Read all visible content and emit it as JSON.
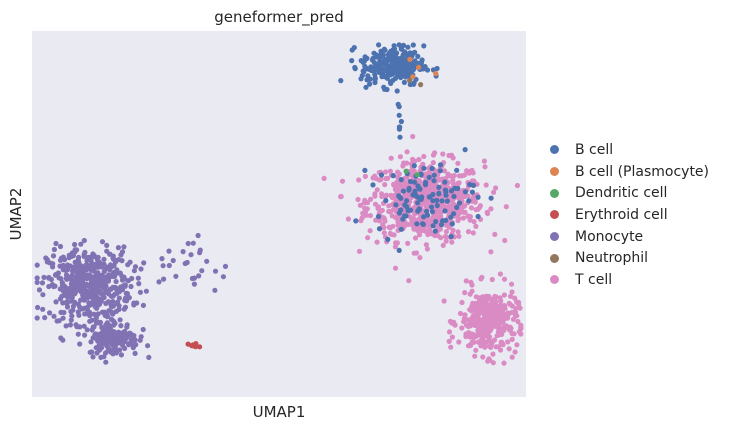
{
  "chart_data": {
    "type": "scatter",
    "title": "geneformer_pred",
    "xlabel": "UMAP1",
    "ylabel": "UMAP2",
    "grid": false,
    "legend_position": "right",
    "series": [
      {
        "name": "B cell",
        "color": "#4c72b0"
      },
      {
        "name": "B cell (Plasmocyte)",
        "color": "#dd8452"
      },
      {
        "name": "Dendritic cell",
        "color": "#55a868"
      },
      {
        "name": "Erythroid cell",
        "color": "#c44e52"
      },
      {
        "name": "Monocyte",
        "color": "#8172b3"
      },
      {
        "name": "Neutrophil",
        "color": "#937860"
      },
      {
        "name": "T cell",
        "color": "#da8bc3"
      }
    ],
    "clusters": [
      {
        "series": "B cell",
        "center": [
          11.3,
          14.6
        ],
        "spread": [
          1.5,
          0.9
        ],
        "count": 260
      },
      {
        "series": "B cell",
        "center": [
          13.2,
          7.4
        ],
        "spread": [
          2.4,
          1.6
        ],
        "count": 110
      },
      {
        "series": "B cell",
        "center": [
          11.7,
          11.8
        ],
        "spread": [
          0.1,
          1.0
        ],
        "count": 8
      },
      {
        "series": "B cell (Plasmocyte)",
        "center": [
          12.6,
          14.4
        ],
        "spread": [
          0.8,
          0.6
        ],
        "count": 4
      },
      {
        "series": "Dendritic cell",
        "center": [
          12.4,
          8.6
        ],
        "spread": [
          0.3,
          0.3
        ],
        "count": 2
      },
      {
        "series": "Erythroid cell",
        "center": [
          -0.2,
          -0.7
        ],
        "spread": [
          0.3,
          0.15
        ],
        "count": 8
      },
      {
        "series": "Monocyte",
        "center": [
          -6.2,
          2.6
        ],
        "spread": [
          2.0,
          1.7
        ],
        "count": 480
      },
      {
        "series": "Monocyte",
        "center": [
          -4.8,
          -0.3
        ],
        "spread": [
          1.2,
          0.8
        ],
        "count": 160
      },
      {
        "series": "Monocyte",
        "center": [
          -0.6,
          3.6
        ],
        "spread": [
          2.2,
          1.4
        ],
        "count": 30
      },
      {
        "series": "Neutrophil",
        "center": [
          12.5,
          14.0
        ],
        "spread": [
          0.5,
          0.5
        ],
        "count": 2
      },
      {
        "series": "T cell",
        "center": [
          13.2,
          7.2
        ],
        "spread": [
          2.8,
          1.8
        ],
        "count": 700
      },
      {
        "series": "T cell",
        "center": [
          16.8,
          0.6
        ],
        "spread": [
          1.4,
          1.5
        ],
        "count": 320
      }
    ],
    "xlim": [
      -9.5,
      19.0
    ],
    "ylim": [
      -3.5,
      16.5
    ]
  }
}
